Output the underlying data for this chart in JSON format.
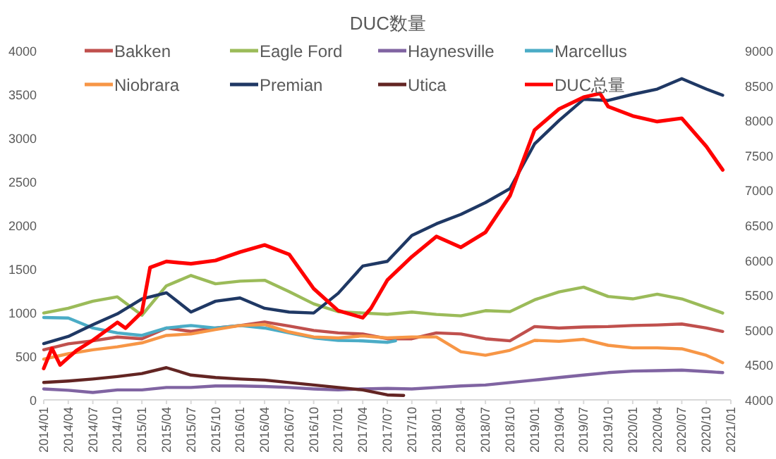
{
  "chart_data": {
    "type": "line",
    "title": "DUC数量",
    "legend": "top",
    "xlim": [
      "2014-01",
      "2021-01"
    ],
    "xticks": [
      {
        "value": "2014-01",
        "label": "2014/01"
      },
      {
        "value": "2014-04",
        "label": "2014/04"
      },
      {
        "value": "2014-07",
        "label": "2014/07"
      },
      {
        "value": "2014-10",
        "label": "2014/10"
      },
      {
        "value": "2015-01",
        "label": "2015/01"
      },
      {
        "value": "2015-04",
        "label": "2015/04"
      },
      {
        "value": "2015-07",
        "label": "2015/07"
      },
      {
        "value": "2015-10",
        "label": "2015/10"
      },
      {
        "value": "2016-01",
        "label": "2016/01"
      },
      {
        "value": "2016-04",
        "label": "2016/04"
      },
      {
        "value": "2016-07",
        "label": "2016/07"
      },
      {
        "value": "2016-10",
        "label": "2016/10"
      },
      {
        "value": "2017-01",
        "label": "2017/01"
      },
      {
        "value": "2017-04",
        "label": "2017/04"
      },
      {
        "value": "2017-07",
        "label": "2017/07"
      },
      {
        "value": "2017-10",
        "label": "2017/10"
      },
      {
        "value": "2018-01",
        "label": "2018/01"
      },
      {
        "value": "2018-04",
        "label": "2018/04"
      },
      {
        "value": "2018-07",
        "label": "2018/07"
      },
      {
        "value": "2018-10",
        "label": "2018/10"
      },
      {
        "value": "2019-01",
        "label": "2019/01"
      },
      {
        "value": "2019-04",
        "label": "2019/04"
      },
      {
        "value": "2019-07",
        "label": "2019/07"
      },
      {
        "value": "2019-10",
        "label": "2019/10"
      },
      {
        "value": "2020-01",
        "label": "2020/01"
      },
      {
        "value": "2020-04",
        "label": "2020/04"
      },
      {
        "value": "2020-07",
        "label": "2020/07"
      },
      {
        "value": "2020-10",
        "label": "2020/10"
      },
      {
        "value": "2021-01",
        "label": "2021/01"
      }
    ],
    "ylim": [
      0,
      4000
    ],
    "yticks": [
      0,
      500,
      1000,
      1500,
      2000,
      2500,
      3000,
      3500,
      4000
    ],
    "y2lim": [
      4000,
      9000
    ],
    "y2ticks": [
      4000,
      4500,
      5000,
      5500,
      6000,
      6500,
      7000,
      7500,
      8000,
      8500,
      9000
    ],
    "series": [
      {
        "name": "Bakken",
        "color": "#c0504d",
        "x": [
          "2014-01",
          "2014-04",
          "2014-07",
          "2014-10",
          "2015-01",
          "2015-04",
          "2015-07",
          "2015-10",
          "2016-01",
          "2016-04",
          "2016-07",
          "2016-10",
          "2017-01",
          "2017-04",
          "2017-07",
          "2017-10",
          "2018-01",
          "2018-04",
          "2018-07",
          "2018-10",
          "2019-01",
          "2019-04",
          "2019-07",
          "2019-10",
          "2020-01",
          "2020-04",
          "2020-07",
          "2020-10",
          "2020-12"
        ],
        "values": [
          574,
          642,
          676,
          720,
          700,
          823,
          784,
          823,
          852,
          892,
          846,
          795,
          767,
          755,
          700,
          700,
          767,
          755,
          700,
          676,
          840,
          823,
          835,
          840,
          852,
          858,
          869,
          823,
          784
        ]
      },
      {
        "name": "Eagle Ford",
        "color": "#9bbb59",
        "x": [
          "2014-01",
          "2014-04",
          "2014-07",
          "2014-10",
          "2015-01",
          "2015-04",
          "2015-07",
          "2015-10",
          "2016-01",
          "2016-04",
          "2016-07",
          "2016-10",
          "2017-01",
          "2017-04",
          "2017-07",
          "2017-10",
          "2018-01",
          "2018-04",
          "2018-07",
          "2018-10",
          "2019-01",
          "2019-04",
          "2019-07",
          "2019-10",
          "2020-01",
          "2020-04",
          "2020-07",
          "2020-10",
          "2020-12"
        ],
        "values": [
          995,
          1050,
          1130,
          1180,
          970,
          1307,
          1425,
          1330,
          1360,
          1370,
          1240,
          1100,
          1010,
          995,
          980,
          1006,
          979,
          963,
          1022,
          1011,
          1146,
          1237,
          1291,
          1184,
          1157,
          1210,
          1157,
          1060,
          995
        ]
      },
      {
        "name": "Haynesville",
        "color": "#8064a2",
        "x": [
          "2014-01",
          "2014-04",
          "2014-07",
          "2014-10",
          "2015-01",
          "2015-04",
          "2015-07",
          "2015-10",
          "2016-01",
          "2016-04",
          "2016-07",
          "2016-10",
          "2017-01",
          "2017-04",
          "2017-07",
          "2017-10",
          "2018-01",
          "2018-04",
          "2018-07",
          "2018-10",
          "2019-01",
          "2019-04",
          "2019-07",
          "2019-10",
          "2020-01",
          "2020-04",
          "2020-07",
          "2020-10",
          "2020-12"
        ],
        "values": [
          125,
          110,
          85,
          114,
          114,
          142,
          142,
          159,
          159,
          153,
          142,
          125,
          114,
          125,
          131,
          125,
          142,
          159,
          170,
          199,
          227,
          256,
          284,
          312,
          330,
          335,
          341,
          324,
          312
        ]
      },
      {
        "name": "Marcellus",
        "color": "#4bacc6",
        "x": [
          "2014-01",
          "2014-04",
          "2014-07",
          "2014-10",
          "2015-01",
          "2015-04",
          "2015-07",
          "2015-10",
          "2016-01",
          "2016-04",
          "2016-07",
          "2016-10",
          "2017-01",
          "2017-04",
          "2017-07",
          "2017-08"
        ],
        "values": [
          943,
          937,
          823,
          767,
          738,
          823,
          852,
          823,
          852,
          823,
          767,
          710,
          682,
          676,
          659,
          676
        ]
      },
      {
        "name": "Niobrara",
        "color": "#f79646",
        "x": [
          "2014-01",
          "2014-04",
          "2014-07",
          "2014-10",
          "2015-01",
          "2015-04",
          "2015-07",
          "2015-10",
          "2016-01",
          "2016-04",
          "2016-07",
          "2016-10",
          "2017-01",
          "2017-04",
          "2017-07",
          "2017-10",
          "2018-01",
          "2018-04",
          "2018-07",
          "2018-10",
          "2019-01",
          "2019-04",
          "2019-07",
          "2019-10",
          "2020-01",
          "2020-04",
          "2020-07",
          "2020-10",
          "2020-12"
        ],
        "values": [
          466,
          528,
          574,
          608,
          653,
          738,
          755,
          806,
          852,
          863,
          778,
          721,
          710,
          733,
          710,
          721,
          721,
          551,
          511,
          568,
          682,
          670,
          693,
          625,
          596,
          596,
          585,
          511,
          426
        ]
      },
      {
        "name": "Premian",
        "color": "#1f3864",
        "x": [
          "2014-01",
          "2014-04",
          "2014-07",
          "2014-10",
          "2015-01",
          "2015-04",
          "2015-07",
          "2015-10",
          "2016-01",
          "2016-04",
          "2016-07",
          "2016-10",
          "2017-01",
          "2017-04",
          "2017-07",
          "2017-10",
          "2018-01",
          "2018-04",
          "2018-07",
          "2018-10",
          "2019-01",
          "2019-04",
          "2019-07",
          "2019-10",
          "2020-01",
          "2020-04",
          "2020-07",
          "2020-10",
          "2020-12"
        ],
        "values": [
          645,
          726,
          861,
          985,
          1157,
          1227,
          1006,
          1130,
          1167,
          1049,
          1006,
          995,
          1221,
          1533,
          1587,
          1883,
          2017,
          2125,
          2260,
          2421,
          2932,
          3200,
          3443,
          3430,
          3500,
          3560,
          3680,
          3560,
          3490
        ]
      },
      {
        "name": "Utica",
        "color": "#632523",
        "x": [
          "2014-01",
          "2014-04",
          "2014-07",
          "2014-10",
          "2015-01",
          "2015-04",
          "2015-07",
          "2015-10",
          "2016-01",
          "2016-04",
          "2016-07",
          "2016-10",
          "2017-01",
          "2017-04",
          "2017-07",
          "2017-09"
        ],
        "values": [
          199,
          216,
          239,
          267,
          301,
          369,
          284,
          256,
          239,
          227,
          199,
          170,
          142,
          114,
          57,
          51
        ]
      },
      {
        "name": "DUC总量",
        "color": "#ff0000",
        "axis": "y2",
        "x": [
          "2014-01",
          "2014-02",
          "2014-03",
          "2014-04",
          "2014-05",
          "2014-07",
          "2014-10",
          "2014-11",
          "2015-01",
          "2015-02",
          "2015-04",
          "2015-07",
          "2015-10",
          "2016-01",
          "2016-04",
          "2016-07",
          "2016-10",
          "2017-01",
          "2017-04",
          "2017-05",
          "2017-07",
          "2017-10",
          "2018-01",
          "2018-04",
          "2018-07",
          "2018-10",
          "2019-01",
          "2019-04",
          "2019-07",
          "2019-09",
          "2019-10",
          "2020-01",
          "2020-04",
          "2020-07",
          "2020-10",
          "2020-12"
        ],
        "values": [
          4450,
          4739,
          4500,
          4605,
          4706,
          4853,
          5109,
          5028,
          5257,
          5895,
          5982,
          5949,
          5996,
          6117,
          6218,
          6083,
          5593,
          5277,
          5176,
          5310,
          5714,
          6050,
          6339,
          6184,
          6399,
          6923,
          7864,
          8166,
          8334,
          8388,
          8200,
          8066,
          7985,
          8032,
          7629,
          7293
        ]
      }
    ]
  }
}
